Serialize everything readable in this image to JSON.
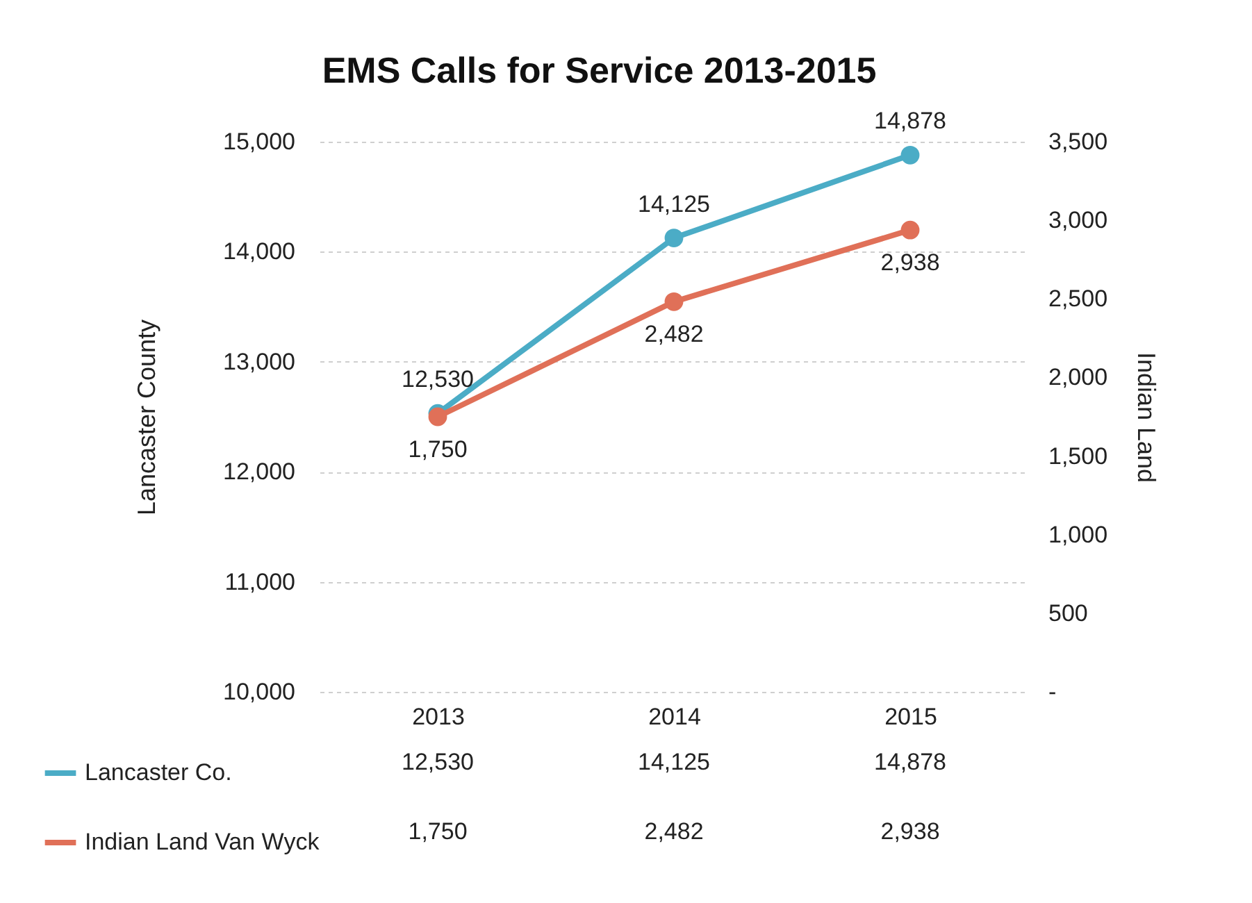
{
  "chart_data": {
    "type": "line",
    "title": "EMS Calls for Service 2013-2015",
    "ylabel": "Lancaster County",
    "y2label": "Indian Land",
    "categories": [
      "2013",
      "2014",
      "2015"
    ],
    "series": [
      {
        "name": "Lancaster Co.",
        "color": "#4bacc6",
        "values": [
          12530,
          14125,
          14878
        ],
        "value_labels": [
          "12,530",
          "14,125",
          "14,878"
        ]
      },
      {
        "name": "Indian Land Van Wyck",
        "color": "#e07058",
        "values": [
          1750,
          2482,
          2938
        ],
        "value_labels": [
          "1,750",
          "2,482",
          "2,938"
        ],
        "axis": "y2"
      }
    ],
    "ylim": [
      10000,
      15000
    ],
    "yticks": [
      {
        "value": 10000,
        "label": "10,000"
      },
      {
        "value": 11000,
        "label": "11,000"
      },
      {
        "value": 12000,
        "label": "12,000"
      },
      {
        "value": 13000,
        "label": "13,000"
      },
      {
        "value": 14000,
        "label": "14,000"
      },
      {
        "value": 15000,
        "label": "15,000"
      }
    ],
    "y2lim": [
      0,
      3500
    ],
    "y2ticks": [
      {
        "value": 0,
        "label": "-"
      },
      {
        "value": 500,
        "label": "500"
      },
      {
        "value": 1000,
        "label": "1,000"
      },
      {
        "value": 1500,
        "label": "1,500"
      },
      {
        "value": 2000,
        "label": "2,000"
      },
      {
        "value": 2500,
        "label": "2,500"
      },
      {
        "value": 3000,
        "label": "3,000"
      },
      {
        "value": 3500,
        "label": "3,500"
      }
    ],
    "grid": "y",
    "legend": "bottom left",
    "marker": "circle"
  }
}
